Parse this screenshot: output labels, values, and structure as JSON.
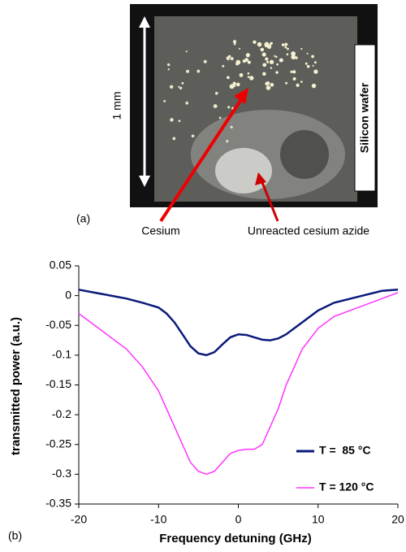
{
  "panel_a": {
    "panel_label": "(a)",
    "scale_label": "1 mm",
    "wafer_label": "Silicon wafer",
    "cesium_label": "Cesium",
    "azide_label": "Unreacted cesium azide"
  },
  "chart_data": {
    "type": "line",
    "panel_label": "(b)",
    "x_label": "Frequency detuning (GHz)",
    "y_label": "transmitted power (a.u.)",
    "x": [
      -20,
      -18,
      -16,
      -14,
      -12,
      -10,
      -9,
      -8,
      -7,
      -6,
      -5,
      -4,
      -3,
      -2,
      -1,
      0,
      1,
      2,
      3,
      4,
      5,
      6,
      7,
      8,
      10,
      12,
      15,
      18,
      20
    ],
    "series": [
      {
        "name": "T =  85 °C",
        "color": "#0a1a7a",
        "values": [
          0.01,
          0.005,
          0.0,
          -0.005,
          -0.012,
          -0.02,
          -0.03,
          -0.045,
          -0.065,
          -0.085,
          -0.097,
          -0.1,
          -0.095,
          -0.082,
          -0.07,
          -0.065,
          -0.066,
          -0.07,
          -0.074,
          -0.075,
          -0.072,
          -0.065,
          -0.055,
          -0.045,
          -0.025,
          -0.012,
          -0.002,
          0.008,
          0.01
        ]
      },
      {
        "name": "T = 120 °C",
        "color": "#ff33ff",
        "values": [
          -0.03,
          -0.05,
          -0.07,
          -0.09,
          -0.12,
          -0.16,
          -0.19,
          -0.22,
          -0.25,
          -0.28,
          -0.295,
          -0.3,
          -0.295,
          -0.28,
          -0.265,
          -0.26,
          -0.258,
          -0.258,
          -0.25,
          -0.22,
          -0.19,
          -0.15,
          -0.12,
          -0.09,
          -0.055,
          -0.035,
          -0.02,
          -0.005,
          0.005
        ]
      }
    ],
    "xlim": [
      -20,
      20
    ],
    "xticks": [
      -20,
      -10,
      0,
      10,
      20
    ],
    "ylim": [
      -0.35,
      0.05
    ],
    "yticks": [
      -0.35,
      -0.3,
      -0.25,
      -0.2,
      -0.15,
      -0.1,
      -0.05,
      0,
      0.05
    ]
  }
}
